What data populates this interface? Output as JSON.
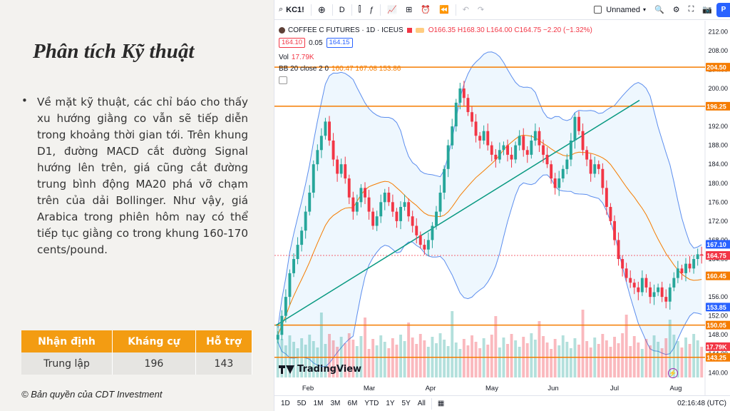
{
  "slide": {
    "title": "Phân tích Kỹ thuật",
    "bullet": "Về mặt kỹ thuật, các chỉ báo cho thấy xu hướng giằng co vẫn sẽ tiếp diễn trong khoảng thời gian tới. Trên khung D1, đường MACD cắt đường Signal hướng lên trên, giá cũng cắt đường trung bình động MA20 phá vỡ chạm trên của dải Bollinger. Như vậy, giá Arabica trong phiên hôm nay có thể tiếp tục giằng co trong khung 160-170 cents/pound.",
    "table": {
      "headers": [
        "Nhận định",
        "Kháng cự",
        "Hỗ trợ"
      ],
      "row": [
        "Trung lập",
        "196",
        "143"
      ]
    },
    "copyright": "© Bản quyền của CDT Investment"
  },
  "toolbar": {
    "symbol": "KC1!",
    "interval": "D",
    "layout_name": "Unnamed"
  },
  "legend": {
    "title": "COFFEE C FUTURES · 1D · ICEUS",
    "ohlc": "O166.35 H168.30 L164.00 C164.75 −2.20 (−1.32%)",
    "bid": "164.10",
    "spread": "0.05",
    "ask": "164.15",
    "vol_label": "Vol",
    "vol_value": "17.79K",
    "bb_label": "BB 20 close 2 0",
    "bb_values": "160.47  167.08  153.86"
  },
  "price_axis": {
    "ticks": [
      "212.00",
      "208.00",
      "204.00",
      "200.00",
      "196.00",
      "192.00",
      "188.00",
      "184.00",
      "180.00",
      "176.00",
      "172.00",
      "168.00",
      "164.00",
      "160.00",
      "156.00",
      "152.00",
      "148.00",
      "144.00",
      "140.00"
    ],
    "badges": [
      {
        "label": "204.50",
        "price": 204.5,
        "color": "#f57c00"
      },
      {
        "label": "196.25",
        "price": 196.25,
        "color": "#f57c00"
      },
      {
        "label": "167.10",
        "price": 167.1,
        "color": "#2962ff"
      },
      {
        "label": "164.75",
        "price": 164.75,
        "color": "#f23645"
      },
      {
        "label": "160.45",
        "price": 160.45,
        "color": "#f57c00"
      },
      {
        "label": "153.85",
        "price": 153.85,
        "color": "#2962ff"
      },
      {
        "label": "150.05",
        "price": 150.05,
        "color": "#f57c00"
      },
      {
        "label": "17.79K",
        "price": 145.5,
        "color": "#f23645"
      },
      {
        "label": "143.25",
        "price": 143.25,
        "color": "#f57c00"
      }
    ]
  },
  "time_axis": [
    "Feb",
    "Mar",
    "Apr",
    "May",
    "Jun",
    "Jul",
    "Aug"
  ],
  "watermark": "TradingView",
  "bottombar": {
    "ranges": [
      "1D",
      "5D",
      "1M",
      "3M",
      "6M",
      "YTD",
      "1Y",
      "5Y",
      "All"
    ],
    "clock": "02:16:48 (UTC)"
  },
  "colors": {
    "up": "#26a69a",
    "down": "#f23645",
    "bb_band": "#5b8dee",
    "basis": "#f57c00",
    "hline": "#f57c00",
    "trend": "#089981"
  },
  "chart_data": {
    "type": "candlestick",
    "symbol": "KC1!",
    "ylim": [
      139,
      214
    ],
    "horizontal_levels": [
      204.5,
      196.25,
      150.05,
      143.25
    ],
    "trendline": [
      [
        150.0,
        0.0
      ],
      [
        197.5,
        1.0
      ]
    ],
    "closes": [
      148,
      152,
      156,
      161,
      164,
      167,
      170,
      174,
      178,
      184,
      187,
      190,
      193,
      189,
      185,
      182,
      184,
      181,
      177,
      174,
      176,
      179,
      177,
      174,
      171,
      173,
      176,
      178,
      176,
      174,
      172,
      175,
      176,
      173,
      171,
      169,
      167,
      166,
      168,
      171,
      174,
      178,
      183,
      188,
      192,
      197,
      200,
      198,
      195,
      193,
      190,
      189,
      191,
      188,
      186,
      185,
      187,
      188,
      186,
      185,
      188,
      190,
      187,
      186,
      189,
      191,
      188,
      186,
      184,
      181,
      179,
      181,
      183,
      185,
      189,
      194,
      191,
      187,
      185,
      182,
      184,
      183,
      179,
      175,
      172,
      168,
      164,
      162,
      160,
      159,
      158,
      157,
      160,
      158,
      156,
      157,
      158,
      156,
      155,
      158,
      160,
      162,
      161,
      163,
      162,
      164,
      165,
      164.75
    ]
  }
}
